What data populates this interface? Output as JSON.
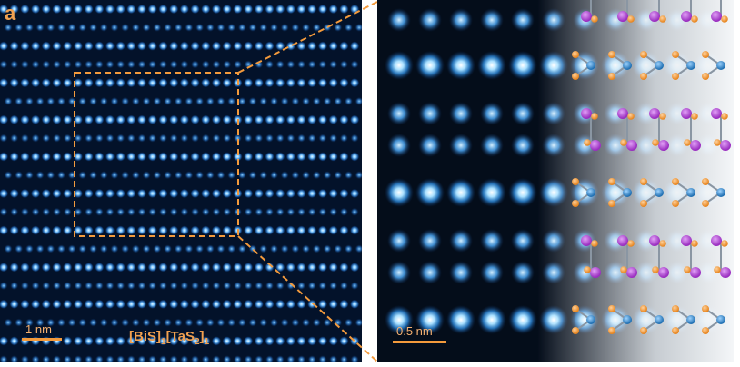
{
  "left_panel": {
    "panel_label": "a",
    "scale_bar_label": "1 nm",
    "formula": {
      "part1": "[BiS]",
      "sub1": "1",
      "part2": "[TaS",
      "sub2": "2",
      "part3": "]",
      "sub3": "1"
    }
  },
  "right_panel": {
    "scale_bar_label": "0.5 nm"
  },
  "colors": {
    "atom_blue": "#4fb0ff",
    "atom_core": "#e8f8ff",
    "sulfur_orange": "#f39a3c",
    "bismuth_purple": "#b04ad0",
    "tantalum_blue": "#2e86c9",
    "annotation_orange": "#f0a050"
  }
}
